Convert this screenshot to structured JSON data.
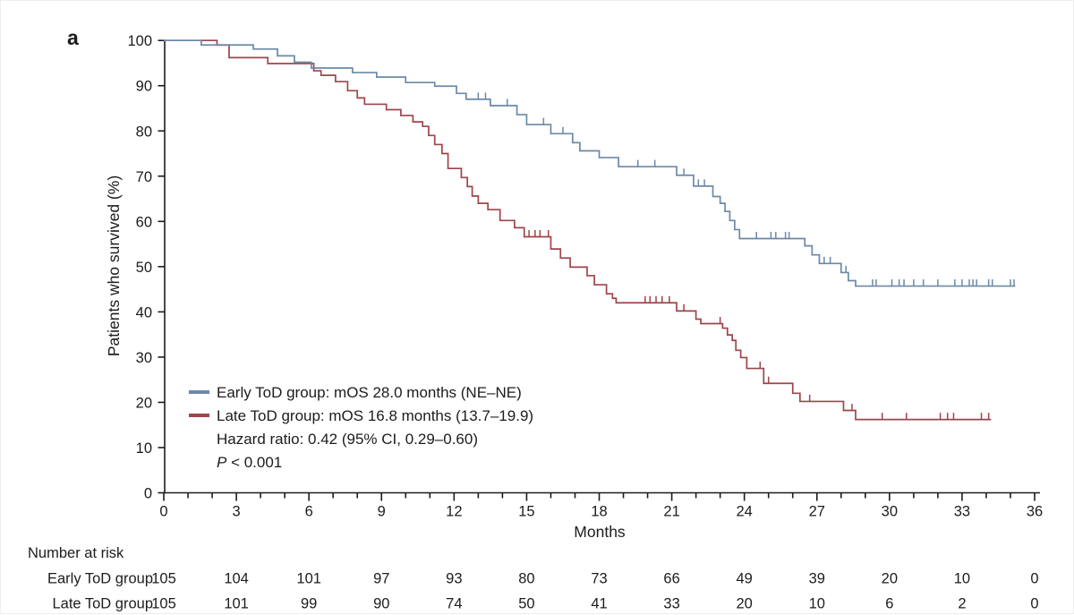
{
  "panel_label": "a",
  "legend": {
    "items": [
      {
        "label": "Early ToD group: mOS 28.0 months (NE–NE)",
        "color": "#6b89a8"
      },
      {
        "label": "Late ToD group: mOS 16.8 months (13.7–19.9)",
        "color": "#9e444b"
      }
    ]
  },
  "stats": {
    "hazard_ratio": "Hazard ratio: 0.42 (95% CI, 0.29–0.60)",
    "p_italic": "P",
    "p_rest": " < 0.001"
  },
  "risk_table": {
    "header": "Number at risk",
    "rows": [
      {
        "label": "Early ToD group",
        "values": [
          105,
          104,
          101,
          97,
          93,
          80,
          73,
          66,
          49,
          39,
          20,
          10,
          0
        ]
      },
      {
        "label": "Late ToD group",
        "values": [
          105,
          101,
          99,
          90,
          74,
          50,
          41,
          33,
          20,
          10,
          6,
          2,
          0
        ]
      }
    ]
  },
  "chart_data": {
    "type": "line",
    "subtype": "kaplan_meier_step",
    "title": "",
    "xlabel": "Months",
    "ylabel": "Patients who survived (%)",
    "xlim": [
      0,
      36
    ],
    "ylim": [
      0,
      100
    ],
    "xticks": [
      0,
      3,
      6,
      9,
      12,
      15,
      18,
      21,
      24,
      27,
      30,
      33,
      36
    ],
    "yticks": [
      0,
      10,
      20,
      30,
      40,
      50,
      60,
      70,
      80,
      90,
      100
    ],
    "grid": false,
    "legend_position": "inside-lower-left",
    "series": [
      {
        "id": "early-tod",
        "name": "Early ToD group",
        "color": "#6b89a8",
        "median_os_months": 28.0,
        "median_ci": "NE–NE",
        "steps": [
          [
            0,
            100
          ],
          [
            1.55,
            99
          ],
          [
            3.7,
            98.1
          ],
          [
            4.7,
            96.6
          ],
          [
            5.4,
            95.2
          ],
          [
            6.1,
            93.9
          ],
          [
            7.8,
            92.9
          ],
          [
            8.8,
            91.9
          ],
          [
            10,
            90.7
          ],
          [
            11.2,
            89.9
          ],
          [
            12.1,
            88.3
          ],
          [
            12.5,
            87
          ],
          [
            13.5,
            85.6
          ],
          [
            14.6,
            83.6
          ],
          [
            15,
            81.4
          ],
          [
            16,
            79.4
          ],
          [
            16.9,
            77.4
          ],
          [
            17.2,
            75.6
          ],
          [
            18,
            74.1
          ],
          [
            18.8,
            72.1
          ],
          [
            21.2,
            70.2
          ],
          [
            21.9,
            67.8
          ],
          [
            22.7,
            65.5
          ],
          [
            23,
            64
          ],
          [
            23.2,
            62.2
          ],
          [
            23.4,
            60.2
          ],
          [
            23.6,
            58.2
          ],
          [
            23.8,
            56.2
          ],
          [
            26.5,
            54.6
          ],
          [
            26.8,
            52.6
          ],
          [
            27.1,
            50.7
          ],
          [
            28,
            48.7
          ],
          [
            28.3,
            46.9
          ],
          [
            28.6,
            45.7
          ]
        ],
        "end_month": 35.2,
        "censor_marks": [
          [
            13,
            87
          ],
          [
            13.3,
            87
          ],
          [
            14.2,
            85.6
          ],
          [
            15.7,
            81.4
          ],
          [
            16.5,
            79.4
          ],
          [
            19.6,
            72.1
          ],
          [
            20.3,
            72.1
          ],
          [
            21.5,
            70.2
          ],
          [
            22.1,
            67.8
          ],
          [
            22.35,
            67.8
          ],
          [
            24.5,
            56.2
          ],
          [
            25.1,
            56.2
          ],
          [
            25.3,
            56.2
          ],
          [
            25.7,
            56.2
          ],
          [
            25.85,
            56.2
          ],
          [
            27.3,
            50.7
          ],
          [
            27.55,
            50.7
          ],
          [
            28.2,
            48.7
          ],
          [
            29.3,
            45.7
          ],
          [
            29.45,
            45.7
          ],
          [
            30.1,
            45.7
          ],
          [
            30.4,
            45.7
          ],
          [
            30.6,
            45.7
          ],
          [
            31,
            45.7
          ],
          [
            31.4,
            45.7
          ],
          [
            32,
            45.7
          ],
          [
            32.7,
            45.7
          ],
          [
            33,
            45.7
          ],
          [
            33.3,
            45.7
          ],
          [
            33.45,
            45.7
          ],
          [
            33.6,
            45.7
          ],
          [
            34.1,
            45.7
          ],
          [
            34.25,
            45.7
          ],
          [
            35,
            45.7
          ],
          [
            35.15,
            45.7
          ]
        ]
      },
      {
        "id": "late-tod",
        "name": "Late ToD group",
        "color": "#9e444b",
        "median_os_months": 16.8,
        "median_ci": "13.7–19.9",
        "steps": [
          [
            0,
            100
          ],
          [
            2.2,
            99
          ],
          [
            2.7,
            96.2
          ],
          [
            4.3,
            94.9
          ],
          [
            6.2,
            93.3
          ],
          [
            6.5,
            92.3
          ],
          [
            7.1,
            90.9
          ],
          [
            7.6,
            88.9
          ],
          [
            8,
            87.3
          ],
          [
            8.3,
            85.9
          ],
          [
            9.2,
            84.7
          ],
          [
            9.8,
            83.4
          ],
          [
            10.3,
            82
          ],
          [
            10.7,
            81
          ],
          [
            10.95,
            79
          ],
          [
            11.2,
            77
          ],
          [
            11.5,
            75
          ],
          [
            11.75,
            71.7
          ],
          [
            12.3,
            69.7
          ],
          [
            12.55,
            67.7
          ],
          [
            12.75,
            65.6
          ],
          [
            13,
            64
          ],
          [
            13.4,
            62.6
          ],
          [
            13.9,
            60.2
          ],
          [
            14.5,
            58.6
          ],
          [
            14.9,
            56.6
          ],
          [
            16,
            53.9
          ],
          [
            16.4,
            51.9
          ],
          [
            16.8,
            49.9
          ],
          [
            17.5,
            48
          ],
          [
            17.8,
            46
          ],
          [
            18.3,
            44
          ],
          [
            18.55,
            43
          ],
          [
            18.7,
            42
          ],
          [
            21.2,
            40.2
          ],
          [
            22,
            38.4
          ],
          [
            22.2,
            37.4
          ],
          [
            23.1,
            36.4
          ],
          [
            23.3,
            34.9
          ],
          [
            23.5,
            33.7
          ],
          [
            23.65,
            31.5
          ],
          [
            23.85,
            29.9
          ],
          [
            24.1,
            27.5
          ],
          [
            24.8,
            24.2
          ],
          [
            26,
            22
          ],
          [
            26.3,
            20.2
          ],
          [
            28.1,
            18.2
          ],
          [
            28.6,
            16.2
          ]
        ],
        "end_month": 34.2,
        "censor_marks": [
          [
            15.1,
            56.6
          ],
          [
            15.35,
            56.6
          ],
          [
            15.55,
            56.6
          ],
          [
            15.9,
            56.6
          ],
          [
            19.9,
            42
          ],
          [
            20.1,
            42
          ],
          [
            20.35,
            42
          ],
          [
            20.6,
            42
          ],
          [
            20.9,
            42
          ],
          [
            21.5,
            40.2
          ],
          [
            23,
            37.4
          ],
          [
            24.65,
            27.5
          ],
          [
            25,
            24.2
          ],
          [
            26.7,
            20.2
          ],
          [
            28.45,
            18.2
          ],
          [
            29.7,
            16.2
          ],
          [
            30.7,
            16.2
          ],
          [
            32.1,
            16.2
          ],
          [
            32.4,
            16.2
          ],
          [
            32.65,
            16.2
          ],
          [
            33.8,
            16.2
          ],
          [
            34.1,
            16.2
          ]
        ]
      }
    ]
  }
}
